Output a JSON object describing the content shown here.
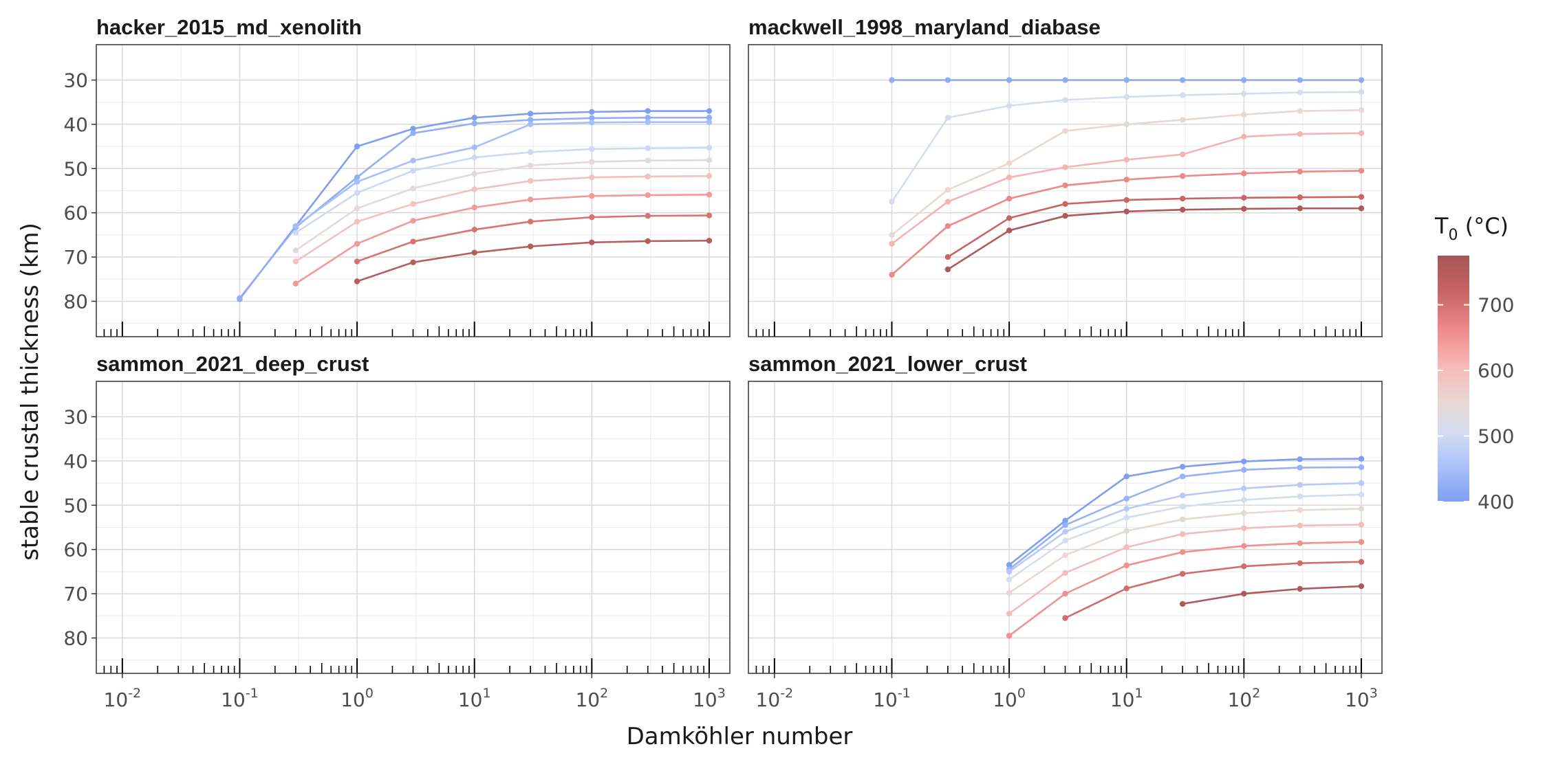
{
  "chart_data": {
    "type": "line",
    "xlabel": "Damköhler number",
    "ylabel": "stable crustal thickness (km)",
    "x_scale": "log10",
    "xlim": [
      0.006,
      1500
    ],
    "x_ticks": [
      {
        "value": 0.01,
        "base": "10",
        "exp": "-2"
      },
      {
        "value": 0.1,
        "base": "10",
        "exp": "-1"
      },
      {
        "value": 1,
        "base": "10",
        "exp": "0"
      },
      {
        "value": 10,
        "base": "10",
        "exp": "1"
      },
      {
        "value": 100,
        "base": "10",
        "exp": "2"
      },
      {
        "value": 1000,
        "base": "10",
        "exp": "3"
      }
    ],
    "y_reversed": true,
    "ylim": [
      22,
      88
    ],
    "y_ticks": [
      30,
      40,
      50,
      60,
      70,
      80
    ],
    "grid": true,
    "x_rug_ticks": true,
    "x": [
      0.1,
      0.3,
      1,
      3,
      10,
      30,
      100,
      300,
      1000
    ],
    "color_scale": {
      "title_main": "T",
      "title_sub": "0",
      "title_rest": " (°C)",
      "min": 400,
      "max": 775,
      "ticks": [
        400,
        500,
        600,
        700
      ],
      "stops": [
        "#7e9ef0",
        "#a9c0fb",
        "#d4dcf2",
        "#e8d8d4",
        "#f7b9b6",
        "#ef8a8a",
        "#c96464",
        "#a55656"
      ]
    },
    "panels": [
      {
        "title": "hacker_2015_md_xenolith",
        "series": [
          {
            "T": 400,
            "y": [
              79.5,
              63.0,
              45.0,
              41.0,
              38.5,
              37.6,
              37.2,
              37.0,
              37.0
            ]
          },
          {
            "T": 425,
            "y": [
              79.3,
              63.3,
              52.0,
              42.0,
              39.8,
              39.0,
              38.6,
              38.5,
              38.5
            ]
          },
          {
            "T": 450,
            "y": [
              null,
              63.0,
              53.0,
              48.2,
              45.2,
              40.0,
              39.6,
              39.5,
              39.5
            ]
          },
          {
            "T": 500,
            "y": [
              null,
              64.5,
              55.5,
              50.5,
              47.5,
              46.3,
              45.6,
              45.4,
              45.3
            ]
          },
          {
            "T": 550,
            "y": [
              null,
              68.5,
              59.0,
              54.5,
              51.2,
              49.3,
              48.5,
              48.2,
              48.1
            ]
          },
          {
            "T": 600,
            "y": [
              null,
              71.0,
              62.0,
              58.0,
              54.7,
              52.8,
              52.0,
              51.8,
              51.7
            ]
          },
          {
            "T": 650,
            "y": [
              null,
              76.0,
              67.0,
              61.8,
              58.8,
              57.0,
              56.2,
              56.0,
              55.9
            ]
          },
          {
            "T": 700,
            "y": [
              null,
              null,
              71.0,
              66.5,
              63.8,
              62.0,
              61.0,
              60.7,
              60.6
            ]
          },
          {
            "T": 750,
            "y": [
              null,
              null,
              75.5,
              71.2,
              69.0,
              67.6,
              66.7,
              66.4,
              66.3
            ]
          }
        ]
      },
      {
        "title": "mackwell_1998_maryland_diabase",
        "series": [
          {
            "T": 420,
            "y": [
              30.0,
              30.0,
              30.0,
              30.0,
              30.0,
              30.0,
              30.0,
              30.0,
              30.0
            ]
          },
          {
            "T": 510,
            "y": [
              57.5,
              38.5,
              35.8,
              34.5,
              33.8,
              33.4,
              33.1,
              32.8,
              32.7
            ]
          },
          {
            "T": 560,
            "y": [
              65.0,
              54.8,
              48.8,
              41.5,
              40.0,
              39.0,
              37.8,
              37.0,
              36.8
            ]
          },
          {
            "T": 620,
            "y": [
              67.0,
              57.5,
              52.0,
              49.7,
              48.0,
              46.8,
              42.8,
              42.2,
              42.0
            ]
          },
          {
            "T": 670,
            "y": [
              74.0,
              63.0,
              56.8,
              53.8,
              52.5,
              51.7,
              51.1,
              50.7,
              50.5
            ]
          },
          {
            "T": 720,
            "y": [
              null,
              70.0,
              61.2,
              58.0,
              57.1,
              56.8,
              56.6,
              56.5,
              56.4
            ]
          },
          {
            "T": 760,
            "y": [
              null,
              72.8,
              64.0,
              60.7,
              59.7,
              59.3,
              59.1,
              59.0,
              59.0
            ]
          }
        ]
      },
      {
        "title": "sammon_2021_deep_crust",
        "series": []
      },
      {
        "title": "sammon_2021_lower_crust",
        "series": [
          {
            "T": 400,
            "y": [
              null,
              null,
              63.5,
              53.5,
              43.5,
              41.3,
              40.1,
              39.6,
              39.5
            ]
          },
          {
            "T": 430,
            "y": [
              null,
              null,
              64.5,
              54.5,
              48.5,
              43.5,
              42.0,
              41.5,
              41.4
            ]
          },
          {
            "T": 470,
            "y": [
              null,
              null,
              65.0,
              56.0,
              50.8,
              47.8,
              46.2,
              45.4,
              45.0
            ]
          },
          {
            "T": 510,
            "y": [
              null,
              null,
              66.8,
              58.0,
              52.8,
              50.3,
              48.8,
              48.0,
              47.6
            ]
          },
          {
            "T": 560,
            "y": [
              null,
              null,
              69.8,
              61.3,
              55.8,
              53.2,
              51.8,
              51.1,
              50.8
            ]
          },
          {
            "T": 610,
            "y": [
              null,
              null,
              74.5,
              65.3,
              59.5,
              56.5,
              55.2,
              54.6,
              54.4
            ]
          },
          {
            "T": 660,
            "y": [
              null,
              null,
              79.5,
              70.0,
              63.6,
              60.6,
              59.2,
              58.6,
              58.3
            ]
          },
          {
            "T": 710,
            "y": [
              null,
              null,
              null,
              75.5,
              68.8,
              65.5,
              63.8,
              63.1,
              62.8
            ]
          },
          {
            "T": 760,
            "y": [
              null,
              null,
              null,
              null,
              null,
              72.3,
              70.0,
              68.9,
              68.3
            ]
          }
        ]
      }
    ]
  }
}
